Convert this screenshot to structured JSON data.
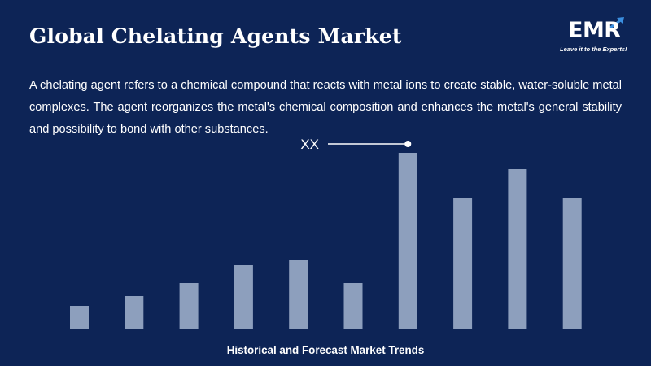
{
  "header": {
    "title": "Global Chelating Agents Market",
    "logo_text": "EMR",
    "logo_tagline": "Leave it to the Experts!"
  },
  "description": "A chelating agent refers to a chemical compound that reacts with metal ions to create stable, water-soluble metal complexes. The agent reorganizes the metal's chemical composition and enhances the metal's general stability and possibility to bond with other substances.",
  "colors": {
    "background": "#0d2456",
    "bar": "#8d9fbd",
    "text": "#ffffff"
  },
  "chart_data": {
    "type": "bar",
    "values": [
      14,
      20,
      28,
      39,
      42,
      28,
      108,
      80,
      98,
      80
    ],
    "ylim": [
      0,
      110
    ],
    "annotation": "XX",
    "annotation_bar_index": 6,
    "caption": "Historical and Forecast Market Trends"
  }
}
